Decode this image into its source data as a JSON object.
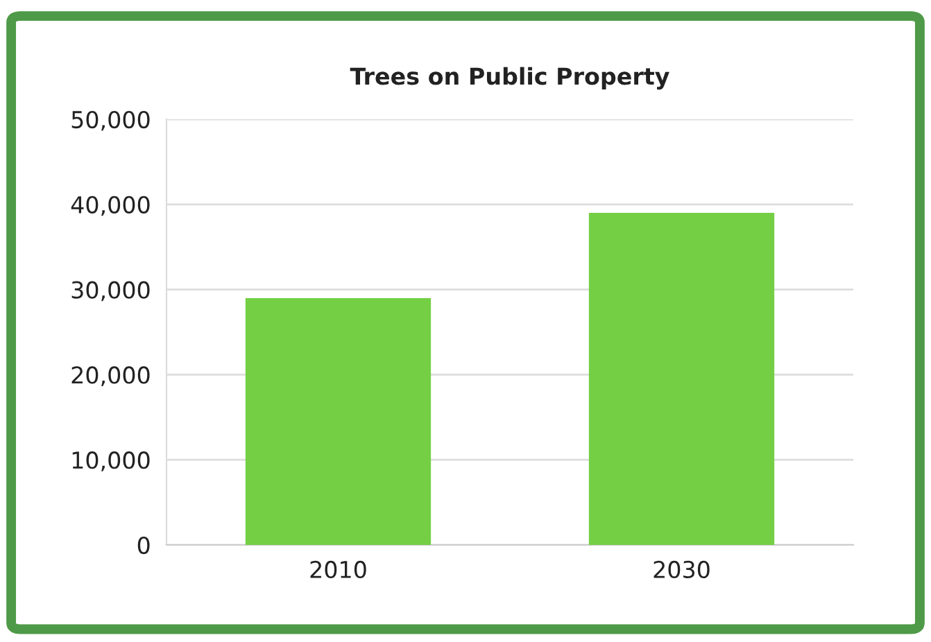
{
  "chart_data": {
    "type": "bar",
    "title": "Trees on Public Property",
    "categories": [
      "2010",
      "2030"
    ],
    "values": [
      29000,
      39000
    ],
    "color": "#74cf45",
    "ylim": [
      0,
      50000
    ],
    "yticks": [
      {
        "value": 0,
        "label": "0"
      },
      {
        "value": 10000,
        "label": "10,000"
      },
      {
        "value": 20000,
        "label": "20,000"
      },
      {
        "value": 30000,
        "label": "30,000"
      },
      {
        "value": 40000,
        "label": "40,000"
      },
      {
        "value": 50000,
        "label": "50,000"
      }
    ],
    "grid": "y"
  }
}
